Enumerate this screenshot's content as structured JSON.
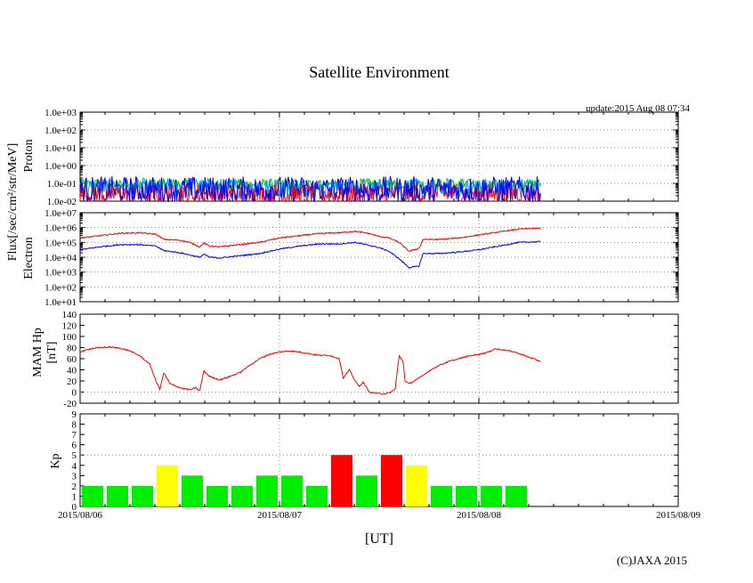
{
  "chart_data": {
    "type": "line",
    "title": "Satellite Environment",
    "update": "update:2015 Aug 08 07:34",
    "copyright": "(C)JAXA 2015",
    "xlabel": "[UT]",
    "xlim": [
      0,
      3
    ],
    "x_ticks": [
      {
        "x": 0,
        "label": "2015/08/06"
      },
      {
        "x": 1,
        "label": "2015/08/07"
      },
      {
        "x": 2,
        "label": "2015/08/08"
      },
      {
        "x": 3,
        "label": "2015/08/09"
      }
    ],
    "flux_label": "Flux[/sec/cm²/str/MeV]",
    "panels": {
      "proton": {
        "ylabel": "Proton",
        "scale": "log",
        "ylim": [
          -2,
          3
        ],
        "tick_labels": [
          "1.0e-02",
          "1.0e-01",
          "1.0e+00",
          "1.0e+01",
          "1.0e+02",
          "1.0e+03"
        ],
        "series": [
          {
            "name": "proton-channel-1",
            "color": "#00cc00",
            "base_log": -1.05,
            "noise": 0.3
          },
          {
            "name": "proton-channel-2",
            "color": "#00a0ff",
            "base_log": -1.25,
            "noise": 0.55
          },
          {
            "name": "proton-channel-3",
            "color": "#ff0000",
            "base_log": -1.6,
            "noise": 0.6
          },
          {
            "name": "proton-channel-4",
            "color": "#0000ff",
            "base_log": -1.35,
            "noise": 0.75
          }
        ],
        "t_end": 2.31
      },
      "electron": {
        "ylabel": "Electron",
        "scale": "log",
        "ylim": [
          1,
          7
        ],
        "tick_labels": [
          "1.0e+01",
          "1.0e+02",
          "1.0e+03",
          "1.0e+04",
          "1.0e+05",
          "1.0e+06",
          "1.0e+07"
        ],
        "series": [
          {
            "name": "electron-high",
            "color": "#ff0000",
            "points": [
              [
                0,
                5.3
              ],
              [
                0.1,
                5.45
              ],
              [
                0.2,
                5.62
              ],
              [
                0.3,
                5.65
              ],
              [
                0.38,
                5.55
              ],
              [
                0.42,
                5.2
              ],
              [
                0.5,
                5.15
              ],
              [
                0.55,
                5.0
              ],
              [
                0.6,
                4.7
              ],
              [
                0.62,
                4.95
              ],
              [
                0.65,
                4.75
              ],
              [
                0.7,
                4.7
              ],
              [
                0.8,
                4.85
              ],
              [
                0.9,
                5.0
              ],
              [
                1.0,
                5.3
              ],
              [
                1.1,
                5.45
              ],
              [
                1.2,
                5.6
              ],
              [
                1.3,
                5.65
              ],
              [
                1.38,
                5.75
              ],
              [
                1.45,
                5.6
              ],
              [
                1.5,
                5.4
              ],
              [
                1.55,
                5.3
              ],
              [
                1.6,
                5.0
              ],
              [
                1.65,
                4.4
              ],
              [
                1.7,
                4.6
              ],
              [
                1.72,
                5.2
              ],
              [
                1.8,
                5.2
              ],
              [
                1.9,
                5.3
              ],
              [
                2.0,
                5.5
              ],
              [
                2.1,
                5.7
              ],
              [
                2.2,
                5.9
              ],
              [
                2.31,
                5.95
              ]
            ]
          },
          {
            "name": "electron-low",
            "color": "#0000ff",
            "points": [
              [
                0,
                4.5
              ],
              [
                0.1,
                4.7
              ],
              [
                0.2,
                4.85
              ],
              [
                0.3,
                4.85
              ],
              [
                0.38,
                4.75
              ],
              [
                0.42,
                4.45
              ],
              [
                0.5,
                4.3
              ],
              [
                0.55,
                4.15
              ],
              [
                0.6,
                4.0
              ],
              [
                0.62,
                4.2
              ],
              [
                0.65,
                4.0
              ],
              [
                0.7,
                3.95
              ],
              [
                0.8,
                4.1
              ],
              [
                0.9,
                4.25
              ],
              [
                1.0,
                4.55
              ],
              [
                1.1,
                4.75
              ],
              [
                1.2,
                4.9
              ],
              [
                1.3,
                4.9
              ],
              [
                1.38,
                5.0
              ],
              [
                1.45,
                4.8
              ],
              [
                1.5,
                4.65
              ],
              [
                1.55,
                4.4
              ],
              [
                1.6,
                3.9
              ],
              [
                1.65,
                3.3
              ],
              [
                1.7,
                3.4
              ],
              [
                1.72,
                4.25
              ],
              [
                1.8,
                4.25
              ],
              [
                1.9,
                4.35
              ],
              [
                2.0,
                4.5
              ],
              [
                2.1,
                4.75
              ],
              [
                2.2,
                5.0
              ],
              [
                2.31,
                5.05
              ]
            ]
          }
        ]
      },
      "mam_hp": {
        "ylabel": "MAM Hp",
        "ylabel2": "[nT]",
        "scale": "linear",
        "ylim": [
          -20,
          140
        ],
        "ticks": [
          -20,
          0,
          20,
          40,
          60,
          80,
          100,
          120,
          140
        ],
        "series": [
          {
            "name": "hp",
            "color": "#ff0000",
            "points": [
              [
                0,
                72
              ],
              [
                0.05,
                78
              ],
              [
                0.1,
                80
              ],
              [
                0.15,
                81
              ],
              [
                0.2,
                79
              ],
              [
                0.25,
                74
              ],
              [
                0.3,
                65
              ],
              [
                0.35,
                50
              ],
              [
                0.38,
                20
              ],
              [
                0.4,
                5
              ],
              [
                0.42,
                35
              ],
              [
                0.45,
                15
              ],
              [
                0.5,
                8
              ],
              [
                0.55,
                4
              ],
              [
                0.58,
                8
              ],
              [
                0.6,
                2
              ],
              [
                0.62,
                38
              ],
              [
                0.65,
                28
              ],
              [
                0.7,
                22
              ],
              [
                0.75,
                28
              ],
              [
                0.8,
                35
              ],
              [
                0.85,
                48
              ],
              [
                0.9,
                60
              ],
              [
                0.95,
                68
              ],
              [
                1.0,
                72
              ],
              [
                1.05,
                74
              ],
              [
                1.1,
                72
              ],
              [
                1.15,
                69
              ],
              [
                1.2,
                66
              ],
              [
                1.25,
                66
              ],
              [
                1.3,
                60
              ],
              [
                1.32,
                25
              ],
              [
                1.35,
                40
              ],
              [
                1.38,
                20
              ],
              [
                1.4,
                10
              ],
              [
                1.42,
                18
              ],
              [
                1.45,
                0
              ],
              [
                1.5,
                -3
              ],
              [
                1.55,
                -2
              ],
              [
                1.58,
                5
              ],
              [
                1.6,
                65
              ],
              [
                1.62,
                55
              ],
              [
                1.63,
                20
              ],
              [
                1.65,
                15
              ],
              [
                1.7,
                25
              ],
              [
                1.75,
                38
              ],
              [
                1.8,
                48
              ],
              [
                1.85,
                55
              ],
              [
                1.9,
                60
              ],
              [
                1.95,
                65
              ],
              [
                2.0,
                68
              ],
              [
                2.05,
                72
              ],
              [
                2.08,
                78
              ],
              [
                2.12,
                76
              ],
              [
                2.18,
                72
              ],
              [
                2.25,
                63
              ],
              [
                2.31,
                55
              ]
            ]
          }
        ]
      },
      "kp": {
        "ylabel": "Kp",
        "scale": "linear",
        "ylim": [
          0,
          9
        ],
        "ticks": [
          0,
          1,
          2,
          3,
          4,
          5,
          6,
          7,
          8,
          9
        ],
        "bar_width": 0.125,
        "values": [
          2,
          2,
          2,
          4,
          3,
          2,
          2,
          3,
          3,
          2,
          5,
          3,
          5,
          4,
          2,
          2,
          2,
          2
        ],
        "colors": {
          "quiet": "#00ee00",
          "active": "#ffff00",
          "storm": "#ff0000"
        }
      }
    }
  }
}
